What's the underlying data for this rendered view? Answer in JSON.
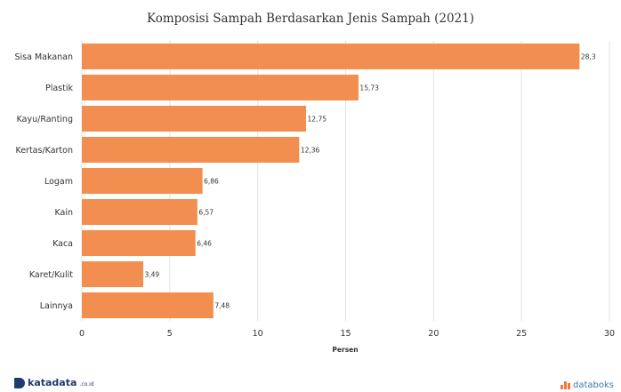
{
  "chart_data": {
    "type": "bar",
    "orientation": "horizontal",
    "title": "Komposisi Sampah Berdasarkan Jenis Sampah (2021)",
    "xlabel": "Persen",
    "ylabel": "",
    "categories": [
      "Sisa Makanan",
      "Plastik",
      "Kayu/Ranting",
      "Kertas/Karton",
      "Logam",
      "Kain",
      "Kaca",
      "Karet/Kulit",
      "Lainnya"
    ],
    "values": [
      28.3,
      15.73,
      12.75,
      12.36,
      6.86,
      6.57,
      6.46,
      3.49,
      7.48
    ],
    "value_labels": [
      "28,3",
      "15,73",
      "12,75",
      "12,36",
      "6,86",
      "6,57",
      "6,46",
      "3,49",
      "7,48"
    ],
    "xlim": [
      0,
      30
    ],
    "xticks": [
      0,
      5,
      10,
      15,
      20,
      25,
      30
    ],
    "grid": true,
    "legend": "none",
    "bar_color": "#f28e4f"
  },
  "footer": {
    "left_logo": "katadata",
    "left_logo_suffix": ".co.id",
    "right_logo": "databoks"
  }
}
